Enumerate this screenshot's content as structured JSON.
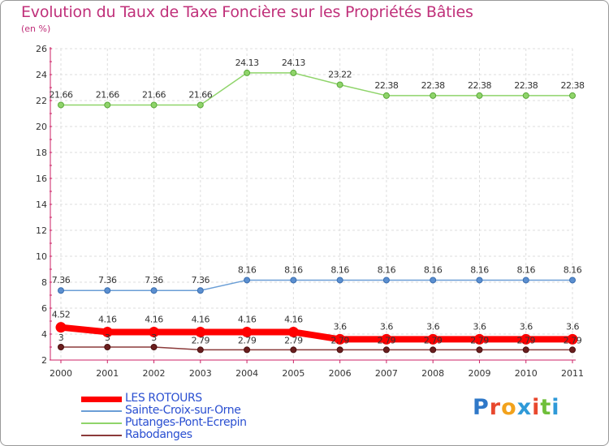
{
  "header": {
    "title": "Evolution du Taux de Taxe Foncière sur les Propriétés Bâties",
    "subtitle": "(en %)"
  },
  "brand": {
    "text": "Proxiti",
    "colors": [
      "#2f78c8",
      "#e8482e",
      "#f2a21c",
      "#2f9ad8",
      "#e8482e",
      "#6fbf3a",
      "#2f9ad8"
    ]
  },
  "chart_data": {
    "type": "line",
    "x": [
      "2000",
      "2001",
      "2002",
      "2003",
      "2004",
      "2005",
      "2006",
      "2007",
      "2008",
      "2009",
      "2010",
      "2011"
    ],
    "ylim": [
      2,
      26
    ],
    "yticks": [
      2,
      4,
      6,
      8,
      10,
      12,
      14,
      16,
      18,
      20,
      22,
      24,
      26
    ],
    "grid": true,
    "legend_position": "bottom-left",
    "series": [
      {
        "name": "LES ROTOURS",
        "color": "#ff0000",
        "values": [
          4.52,
          4.16,
          4.16,
          4.16,
          4.16,
          4.16,
          3.6,
          3.6,
          3.6,
          3.6,
          3.6,
          3.6
        ],
        "labels": [
          "4.52",
          "4.16",
          "4.16",
          "4.16",
          "4.16",
          "4.16",
          "3.6",
          "3.6",
          "3.6",
          "3.6",
          "3.6",
          "3.6"
        ]
      },
      {
        "name": "Sainte-Croix-sur-Orne",
        "color": "#6a9ed6",
        "values": [
          7.36,
          7.36,
          7.36,
          7.36,
          8.16,
          8.16,
          8.16,
          8.16,
          8.16,
          8.16,
          8.16,
          8.16
        ],
        "labels": [
          "7.36",
          "7.36",
          "7.36",
          "7.36",
          "8.16",
          "8.16",
          "8.16",
          "8.16",
          "8.16",
          "8.16",
          "8.16",
          "8.16"
        ]
      },
      {
        "name": "Putanges-Pont-Ecrepin",
        "color": "#8fd46a",
        "values": [
          21.66,
          21.66,
          21.66,
          21.66,
          24.13,
          24.13,
          23.22,
          22.38,
          22.38,
          22.38,
          22.38,
          22.38
        ],
        "labels": [
          "21.66",
          "21.66",
          "21.66",
          "21.66",
          "24.13",
          "24.13",
          "23.22",
          "22.38",
          "22.38",
          "22.38",
          "22.38",
          "22.38"
        ]
      },
      {
        "name": "Rabodanges",
        "color": "#8b3a3a",
        "values": [
          3,
          3,
          3,
          2.79,
          2.79,
          2.79,
          2.79,
          2.79,
          2.79,
          2.79,
          2.79,
          2.79
        ],
        "labels": [
          "3",
          "3",
          "3",
          "2.79",
          "2.79",
          "2.79",
          "2.79",
          "2.79",
          "2.79",
          "2.79",
          "2.79",
          "2.79"
        ]
      }
    ]
  }
}
